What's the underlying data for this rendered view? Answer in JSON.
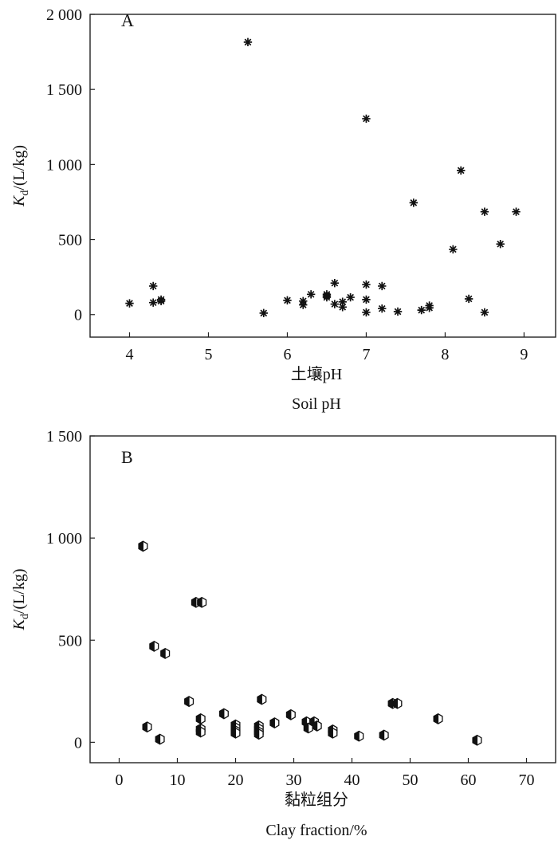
{
  "chart_data": [
    {
      "type": "scatter",
      "panel_label": "A",
      "xlabel": "土壤pH",
      "xlabel_en": "Soil pH",
      "ylabel_main": "K",
      "ylabel_sub": "d",
      "ylabel_rest": "/(L/kg)",
      "xlim": [
        3.5,
        9.4
      ],
      "ylim": [
        -150,
        2000
      ],
      "xticks": [
        4,
        5,
        6,
        7,
        8,
        9
      ],
      "xtick_labels": [
        "4",
        "5",
        "6",
        "7",
        "8",
        "9"
      ],
      "yticks": [
        0,
        500,
        1000,
        1500,
        2000
      ],
      "ytick_labels": [
        "0",
        "500",
        "1 000",
        "1 500",
        "2 000"
      ],
      "marker": "asterisk",
      "series": [
        {
          "points": [
            [
              4.0,
              75
            ],
            [
              4.3,
              190
            ],
            [
              4.3,
              80
            ],
            [
              4.4,
              90
            ],
            [
              4.4,
              100
            ],
            [
              5.5,
              1815
            ],
            [
              5.7,
              10
            ],
            [
              6.0,
              95
            ],
            [
              6.2,
              90
            ],
            [
              6.2,
              65
            ],
            [
              6.3,
              135
            ],
            [
              6.5,
              135
            ],
            [
              6.5,
              125
            ],
            [
              6.5,
              115
            ],
            [
              6.6,
              210
            ],
            [
              6.6,
              70
            ],
            [
              6.7,
              85
            ],
            [
              6.7,
              50
            ],
            [
              6.8,
              115
            ],
            [
              7.0,
              1305
            ],
            [
              7.0,
              200
            ],
            [
              7.0,
              100
            ],
            [
              7.0,
              15
            ],
            [
              7.2,
              190
            ],
            [
              7.2,
              40
            ],
            [
              7.4,
              20
            ],
            [
              7.6,
              745
            ],
            [
              7.7,
              30
            ],
            [
              7.8,
              60
            ],
            [
              7.8,
              45
            ],
            [
              8.1,
              435
            ],
            [
              8.2,
              960
            ],
            [
              8.3,
              105
            ],
            [
              8.5,
              685
            ],
            [
              8.5,
              15
            ],
            [
              8.7,
              470
            ],
            [
              8.9,
              685
            ]
          ]
        }
      ]
    },
    {
      "type": "scatter",
      "panel_label": "B",
      "xlabel": "黏粒组分",
      "xlabel_en": "Clay fraction/%",
      "ylabel_main": "K",
      "ylabel_sub": "d",
      "ylabel_rest": "/(L/kg)",
      "xlim": [
        -5,
        75
      ],
      "ylim": [
        -100,
        1500
      ],
      "xticks": [
        0,
        10,
        20,
        30,
        40,
        50,
        60,
        70
      ],
      "xtick_labels": [
        "0",
        "10",
        "20",
        "30",
        "40",
        "50",
        "60",
        "70"
      ],
      "yticks": [
        0,
        500,
        1000,
        1500
      ],
      "ytick_labels": [
        "0",
        "500",
        "1 000",
        "1 500"
      ],
      "marker": "half-filled-hexagon",
      "series": [
        {
          "points": [
            [
              4.1,
              960
            ],
            [
              4.8,
              75
            ],
            [
              6.0,
              470
            ],
            [
              7.0,
              15
            ],
            [
              7.9,
              435
            ],
            [
              12.0,
              200
            ],
            [
              13.2,
              685
            ],
            [
              14.2,
              685
            ],
            [
              14.0,
              115
            ],
            [
              14.0,
              65
            ],
            [
              14.0,
              50
            ],
            [
              18.0,
              140
            ],
            [
              20.0,
              85
            ],
            [
              20.0,
              70
            ],
            [
              20.0,
              55
            ],
            [
              20.0,
              45
            ],
            [
              24.0,
              80
            ],
            [
              24.0,
              65
            ],
            [
              24.0,
              50
            ],
            [
              24.0,
              40
            ],
            [
              24.5,
              210
            ],
            [
              26.7,
              95
            ],
            [
              29.5,
              135
            ],
            [
              32.2,
              100
            ],
            [
              32.5,
              70
            ],
            [
              33.5,
              100
            ],
            [
              34.0,
              80
            ],
            [
              36.7,
              60
            ],
            [
              36.7,
              45
            ],
            [
              41.2,
              30
            ],
            [
              45.5,
              35
            ],
            [
              47.0,
              190
            ],
            [
              47.8,
              190
            ],
            [
              54.8,
              115
            ],
            [
              61.5,
              10
            ]
          ]
        }
      ]
    }
  ]
}
